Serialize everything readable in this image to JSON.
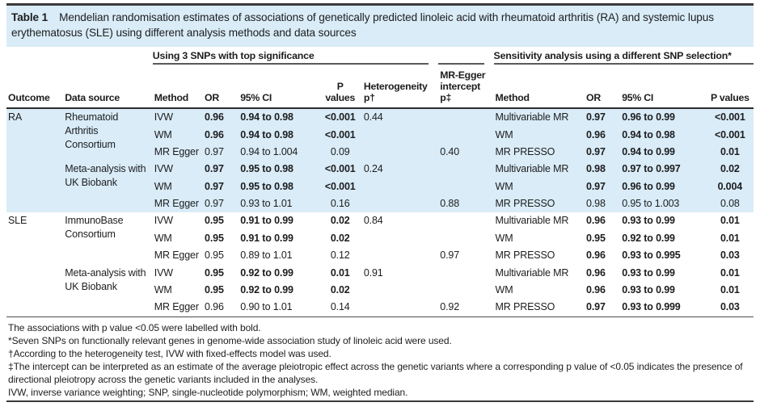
{
  "title": {
    "label": "Table 1",
    "text": "Mendelian randomisation estimates of associations of genetically predicted linoleic acid with rheumatoid arthritis (RA) and systemic lupus erythematosus (SLE) using different analysis methods and data sources"
  },
  "colors": {
    "band_blue": "#d9ecf7",
    "rule_dark": "#3a3a3a",
    "text": "#1d1d1f"
  },
  "table": {
    "group1": "Using 3 SNPs with top significance",
    "group2": "Sensitivity analysis using a different SNP selection*",
    "columns": {
      "outcome": "Outcome",
      "source": "Data source",
      "method": "Method",
      "or": "OR",
      "ci": "95% CI",
      "p": "P values",
      "het": "Heterogeneity p†",
      "egger": "MR-Egger intercept p‡",
      "method2": "Method",
      "or2": "OR",
      "ci2": "95% CI",
      "p2": "P values"
    },
    "rows": [
      {
        "section": "ra",
        "outcome": {
          "text": "RA",
          "rowspan": 6
        },
        "source": {
          "text": "Rheumatoid Arthritis Consortium",
          "rowspan": 3
        },
        "method": "IVW",
        "or": "0.96",
        "ci": "0.94 to 0.98",
        "p": "<0.001",
        "het": "0.44",
        "egger": "",
        "method2": "Multivariable MR",
        "or2": "0.97",
        "ci2": "0.96 to 0.99",
        "p2": "<0.001",
        "bold": [
          "or",
          "ci",
          "p",
          "or2",
          "ci2",
          "p2"
        ]
      },
      {
        "section": "ra",
        "method": "WM",
        "or": "0.96",
        "ci": "0.94 to 0.98",
        "p": "<0.001",
        "het": "",
        "egger": "",
        "method2": "WM",
        "or2": "0.96",
        "ci2": "0.94 to 0.98",
        "p2": "<0.001",
        "bold": [
          "or",
          "ci",
          "p",
          "or2",
          "ci2",
          "p2"
        ]
      },
      {
        "section": "ra",
        "method": "MR Egger",
        "or": "0.97",
        "ci": "0.94 to 1.004",
        "p": "0.09",
        "het": "",
        "egger": "0.40",
        "method2": "MR PRESSO",
        "or2": "0.97",
        "ci2": "0.94 to 0.99",
        "p2": "0.01",
        "bold": [
          "or2",
          "ci2",
          "p2"
        ]
      },
      {
        "section": "ra",
        "source": {
          "text": "Meta-analysis with UK Biobank",
          "rowspan": 3
        },
        "method": "IVW",
        "or": "0.97",
        "ci": "0.95 to 0.98",
        "p": "<0.001",
        "het": "0.24",
        "egger": "",
        "method2": "Multivariable MR",
        "or2": "0.98",
        "ci2": "0.97 to 0.997",
        "p2": "0.02",
        "bold": [
          "or",
          "ci",
          "p",
          "or2",
          "ci2",
          "p2"
        ]
      },
      {
        "section": "ra",
        "method": "WM",
        "or": "0.97",
        "ci": "0.95 to 0.98",
        "p": "<0.001",
        "het": "",
        "egger": "",
        "method2": "WM",
        "or2": "0.97",
        "ci2": "0.96 to 0.99",
        "p2": "0.004",
        "bold": [
          "or",
          "ci",
          "p",
          "or2",
          "ci2",
          "p2"
        ]
      },
      {
        "section": "ra",
        "method": "MR Egger",
        "or": "0.97",
        "ci": "0.93 to 1.01",
        "p": "0.16",
        "het": "",
        "egger": "0.88",
        "method2": "MR PRESSO",
        "or2": "0.98",
        "ci2": "0.95 to 1.003",
        "p2": "0.08",
        "bold": []
      },
      {
        "section": "sle",
        "outcome": {
          "text": "SLE",
          "rowspan": 6
        },
        "source": {
          "text": "ImmunoBase Consortium",
          "rowspan": 3
        },
        "method": "IVW",
        "or": "0.95",
        "ci": "0.91 to 0.99",
        "p": "0.02",
        "het": "0.84",
        "egger": "",
        "method2": "Multivariable MR",
        "or2": "0.96",
        "ci2": "0.93 to 0.99",
        "p2": "0.01",
        "bold": [
          "or",
          "ci",
          "p",
          "or2",
          "ci2",
          "p2"
        ]
      },
      {
        "section": "sle",
        "method": "WM",
        "or": "0.95",
        "ci": "0.91 to 0.99",
        "p": "0.02",
        "het": "",
        "egger": "",
        "method2": "WM",
        "or2": "0.95",
        "ci2": "0.92 to 0.99",
        "p2": "0.01",
        "bold": [
          "or",
          "ci",
          "p",
          "or2",
          "ci2",
          "p2"
        ]
      },
      {
        "section": "sle",
        "method": "MR Egger",
        "or": "0.95",
        "ci": "0.89 to 1.01",
        "p": "0.12",
        "het": "",
        "egger": "0.97",
        "method2": "MR PRESSO",
        "or2": "0.96",
        "ci2": "0.93 to 0.995",
        "p2": "0.03",
        "bold": [
          "or2",
          "ci2",
          "p2"
        ]
      },
      {
        "section": "sle",
        "source": {
          "text": "Meta-analysis with UK Biobank",
          "rowspan": 3
        },
        "method": "IVW",
        "or": "0.95",
        "ci": "0.92 to 0.99",
        "p": "0.01",
        "het": "0.91",
        "egger": "",
        "method2": "Multivariable MR",
        "or2": "0.96",
        "ci2": "0.93 to 0.99",
        "p2": "0.01",
        "bold": [
          "or",
          "ci",
          "p",
          "or2",
          "ci2",
          "p2"
        ]
      },
      {
        "section": "sle",
        "method": "WM",
        "or": "0.95",
        "ci": "0.92 to 0.99",
        "p": "0.02",
        "het": "",
        "egger": "",
        "method2": "WM",
        "or2": "0.96",
        "ci2": "0.93 to 0.99",
        "p2": "0.01",
        "bold": [
          "or",
          "ci",
          "p",
          "or2",
          "ci2",
          "p2"
        ]
      },
      {
        "section": "sle",
        "method": "MR Egger",
        "or": "0.96",
        "ci": "0.90 to 1.01",
        "p": "0.14",
        "het": "",
        "egger": "0.92",
        "method2": "MR PRESSO",
        "or2": "0.97",
        "ci2": "0.93 to 0.999",
        "p2": "0.03",
        "bold": [
          "or2",
          "ci2",
          "p2"
        ]
      }
    ]
  },
  "footnotes": [
    "The associations with p value <0.05 were labelled with bold.",
    "*Seven SNPs on functionally relevant genes in genome-wide association study of linoleic acid were used.",
    "†According to the heterogeneity test, IVW with fixed-effects model was used.",
    "‡The intercept can be interpreted as an estimate of the average pleiotropic effect across the genetic variants where a corresponding p value of <0.05 indicates the presence of directional pleiotropy across the genetic variants included in the analyses.",
    "IVW, inverse variance weighting; SNP, single-nucleotide polymorphism; WM, weighted median."
  ]
}
